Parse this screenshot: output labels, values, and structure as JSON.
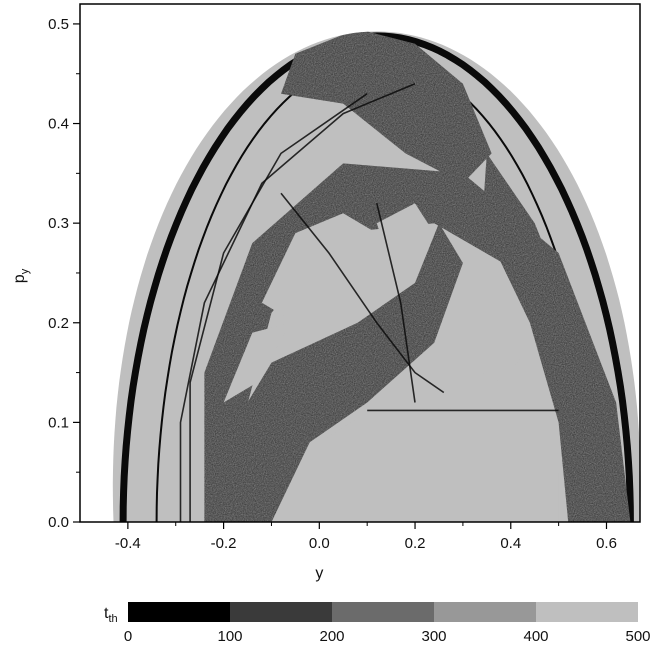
{
  "chart_data": {
    "type": "heatmap",
    "xlabel": "y",
    "ylabel_main": "p",
    "ylabel_sub": "y",
    "xlim": [
      -0.5,
      0.67
    ],
    "ylim": [
      0.0,
      0.52
    ],
    "xticks": [
      {
        "value": -0.4,
        "label": "-0.4"
      },
      {
        "value": -0.2,
        "label": "-0.2"
      },
      {
        "value": 0.0,
        "label": "0.0"
      },
      {
        "value": 0.2,
        "label": "0.2"
      },
      {
        "value": 0.4,
        "label": "0.4"
      },
      {
        "value": 0.6,
        "label": "0.6"
      }
    ],
    "yticks": [
      {
        "value": 0.0,
        "label": "0.0"
      },
      {
        "value": 0.1,
        "label": "0.1"
      },
      {
        "value": 0.2,
        "label": "0.2"
      },
      {
        "value": 0.3,
        "label": "0.3"
      },
      {
        "value": 0.4,
        "label": "0.4"
      },
      {
        "value": 0.5,
        "label": "0.5"
      }
    ],
    "boundary_center_y": 0.12,
    "boundary_semi_axis_y": 0.55,
    "boundary_semi_axis_py": 0.5,
    "grid": false,
    "colorbar": {
      "label_main": "t",
      "label_sub": "th",
      "ticks": [
        "0",
        "100",
        "200",
        "300",
        "400",
        "500"
      ],
      "bins": [
        {
          "from": 0,
          "to": 100,
          "color": "#000000"
        },
        {
          "from": 100,
          "to": 200,
          "color": "#3a3a3a"
        },
        {
          "from": 200,
          "to": 300,
          "color": "#6b6b6b"
        },
        {
          "from": 300,
          "to": 400,
          "color": "#989898"
        },
        {
          "from": 400,
          "to": 500,
          "color": "#bfbfbf"
        }
      ]
    },
    "fill_color": "#bfbfbf",
    "structure_color": "#2b2b2b",
    "edge_color": "#0a0a0a"
  }
}
